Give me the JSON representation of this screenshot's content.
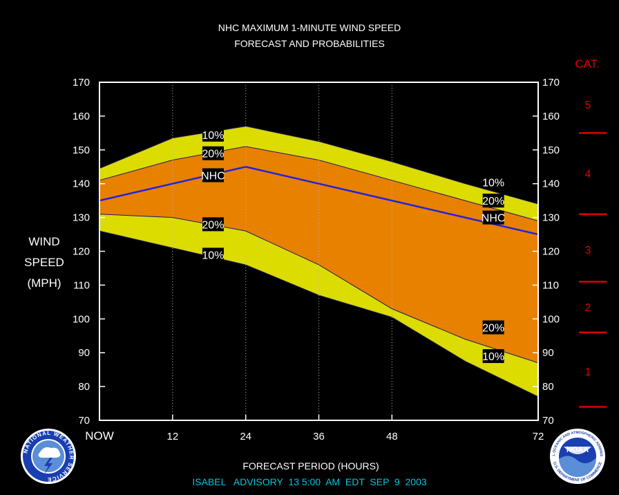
{
  "chart_data": {
    "type": "area",
    "title": "NHC MAXIMUM 1-MINUTE WIND SPEED",
    "subtitle": "FORECAST AND PROBABILITIES",
    "xlabel": "FORECAST PERIOD (HOURS)",
    "ylabel": [
      "WIND",
      "SPEED",
      "(MPH)"
    ],
    "footer": "ISABEL   ADVISORY  13 5:00  AM  EDT  SEP  9  2003",
    "x_ticks": [
      "NOW",
      "12",
      "24",
      "36",
      "48",
      "72"
    ],
    "x_tick_values": [
      0,
      12,
      24,
      36,
      48,
      72
    ],
    "y_ticks": [
      "70",
      "80",
      "90",
      "100",
      "110",
      "120",
      "130",
      "140",
      "150",
      "160",
      "170"
    ],
    "xlim": [
      0,
      72
    ],
    "ylim": [
      70,
      170
    ],
    "x": [
      0,
      12,
      24,
      36,
      48,
      60,
      72
    ],
    "series": [
      {
        "name": "10%",
        "values": [
          144.5,
          153.5,
          157,
          152.5,
          146.5,
          140,
          134
        ]
      },
      {
        "name": "20%",
        "values": [
          141,
          147,
          151,
          147,
          141,
          135,
          129
        ]
      },
      {
        "name": "NHC",
        "values": [
          135,
          140,
          145,
          140,
          135,
          130,
          125
        ]
      },
      {
        "name": "20%",
        "values": [
          131,
          130,
          126,
          116,
          103,
          94,
          87
        ]
      },
      {
        "name": "10%",
        "values": [
          126,
          121,
          116,
          107,
          100.5,
          87.5,
          77
        ]
      }
    ],
    "labels": [
      {
        "text": "10%",
        "x": 17,
        "y": 154.5
      },
      {
        "text": "20%",
        "x": 17,
        "y": 149
      },
      {
        "text": "NHC",
        "x": 17,
        "y": 142.5
      },
      {
        "text": "20%",
        "x": 17,
        "y": 128
      },
      {
        "text": "10%",
        "x": 17,
        "y": 119
      },
      {
        "text": "10%",
        "x": 63,
        "y": 140.5
      },
      {
        "text": "20%",
        "x": 63,
        "y": 135
      },
      {
        "text": "NHC",
        "x": 63,
        "y": 130
      },
      {
        "text": "20%",
        "x": 63,
        "y": 97.5
      },
      {
        "text": "10%",
        "x": 63,
        "y": 89
      }
    ],
    "categories_title": "CAT.",
    "categories": [
      {
        "label": "5",
        "value": 163.5
      },
      {
        "label": "4",
        "value": 143
      },
      {
        "label": "3",
        "value": 120.5
      },
      {
        "label": "2",
        "value": 103.5
      },
      {
        "label": "1",
        "value": 84.5
      }
    ],
    "category_boundaries": [
      155,
      131,
      111,
      96,
      74
    ],
    "colors": {
      "outer_band": "#dcdc00",
      "inner_band": "#e88000",
      "nhc_line": "#2222dd",
      "category_text": "#e00000",
      "footer_text": "#00c8e0",
      "grid": "#bbbbbb"
    },
    "grid": "vertical dotted"
  },
  "logos": {
    "left": "NATIONAL WEATHER SERVICE",
    "right_top": "NATIONAL OCEANIC AND ATMOSPHERIC ADMINISTRATION",
    "right_center": "NOAA",
    "right_bottom": "U.S. DEPARTMENT OF COMMERCE"
  }
}
